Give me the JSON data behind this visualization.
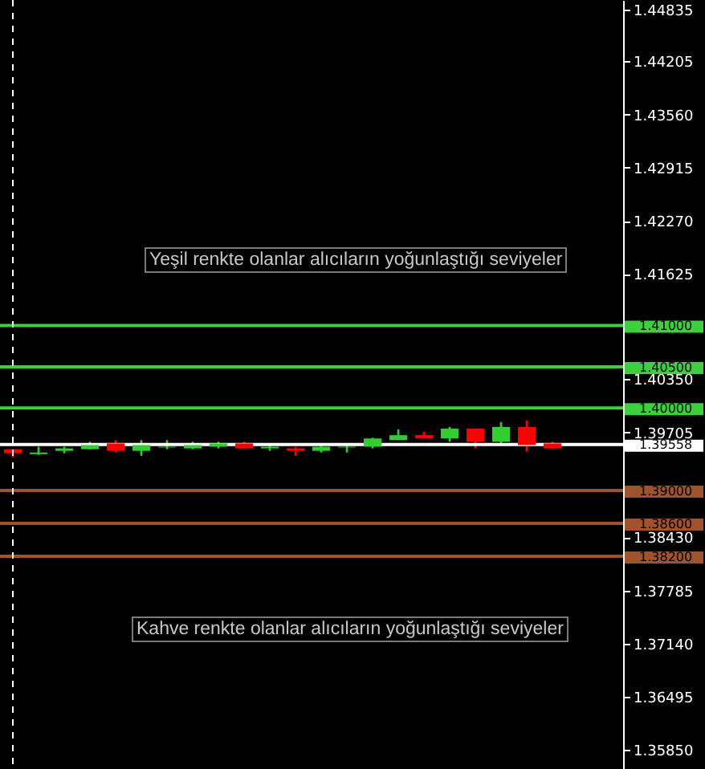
{
  "chart_data": {
    "type": "candlestick",
    "categories": [
      null,
      null,
      null,
      null,
      null,
      null,
      null,
      null,
      null,
      null,
      null,
      null,
      null,
      null,
      null,
      null,
      null,
      null,
      null,
      null,
      null,
      null
    ],
    "ohlc": [
      [
        1.395,
        1.395,
        1.394,
        1.3945
      ],
      [
        1.3944,
        1.3953,
        1.3943,
        1.3946
      ],
      [
        1.3948,
        1.3953,
        1.3945,
        1.3951
      ],
      [
        1.395,
        1.3959,
        1.395,
        1.3955
      ],
      [
        1.3957,
        1.3961,
        1.3946,
        1.3948
      ],
      [
        1.3948,
        1.3961,
        1.3942,
        1.3955
      ],
      [
        1.3952,
        1.3961,
        1.395,
        1.3953
      ],
      [
        1.3951,
        1.3959,
        1.395,
        1.3955
      ],
      [
        1.3953,
        1.3959,
        1.3951,
        1.3957
      ],
      [
        1.3957,
        1.3959,
        1.3951,
        1.3951
      ],
      [
        1.3951,
        1.3955,
        1.3948,
        1.3953
      ],
      [
        1.3951,
        1.3953,
        1.3942,
        1.3948
      ],
      [
        1.3948,
        1.3957,
        1.3946,
        1.3953
      ],
      [
        1.3952,
        1.3955,
        1.3946,
        1.3953
      ],
      [
        1.3953,
        1.3964,
        1.3951,
        1.3963
      ],
      [
        1.3961,
        1.3974,
        1.3961,
        1.3967
      ],
      [
        1.3967,
        1.3971,
        1.3963,
        1.3963
      ],
      [
        1.3963,
        1.3977,
        1.3959,
        1.3975
      ],
      [
        1.3975,
        1.3975,
        1.3951,
        1.3959
      ],
      [
        1.3959,
        1.3983,
        1.3957,
        1.3977
      ],
      [
        1.3977,
        1.3985,
        1.3947,
        1.3955
      ],
      [
        1.3957,
        1.3959,
        1.3951,
        1.3951
      ]
    ],
    "colors": [
      "#ff0000",
      "#32cd32",
      "#32cd32",
      "#32cd32",
      "#ff0000",
      "#32cd32",
      "#32cd32",
      "#32cd32",
      "#32cd32",
      "#ff0000",
      "#32cd32",
      "#ff0000",
      "#32cd32",
      "#32cd32",
      "#32cd32",
      "#32cd32",
      "#ff0000",
      "#32cd32",
      "#ff0000",
      "#32cd32",
      "#ff0000",
      "#ff0000"
    ],
    "ylim": [
      1.3562,
      1.4495
    ],
    "yticks": [
      1.44835,
      1.44205,
      {
        "value": 1.4356,
        "label": "1.43560"
      },
      1.42915,
      {
        "value": 1.4227,
        "label": "1.42270"
      },
      1.41625,
      {
        "value": 1.4035,
        "label": "1.40350"
      },
      1.39705,
      {
        "value": 1.3843,
        "label": "1.38430"
      },
      1.37785,
      {
        "value": 1.3714,
        "label": "1.37140"
      },
      1.36495,
      {
        "value": 1.3585,
        "label": "1.35850"
      }
    ],
    "ref_lines": [
      {
        "axis": "y",
        "value": 1.41,
        "label": "1.41000",
        "color": "#3ecf3e"
      },
      {
        "axis": "y",
        "value": 1.405,
        "label": "1.40500",
        "color": "#3ecf3e"
      },
      {
        "axis": "y",
        "value": 1.4,
        "label": "1.40000",
        "color": "#3ecf3e"
      },
      {
        "axis": "y",
        "value": 1.39558,
        "label": "1.39558",
        "color": "#ffffff"
      },
      {
        "axis": "y",
        "value": 1.39,
        "label": "1.39000",
        "color": "#a0522d"
      },
      {
        "axis": "y",
        "value": 1.386,
        "label": "1.38600",
        "color": "#a0522d"
      },
      {
        "axis": "y",
        "value": 1.382,
        "label": "1.38200",
        "color": "#a0522d"
      }
    ],
    "annotations": [
      "Yeşil renkte olanlar alıcıların yoğunlaştığı seviyeler",
      "Kahve renkte olanlar alıcıların yoğunlaştığı seviyeler"
    ]
  }
}
